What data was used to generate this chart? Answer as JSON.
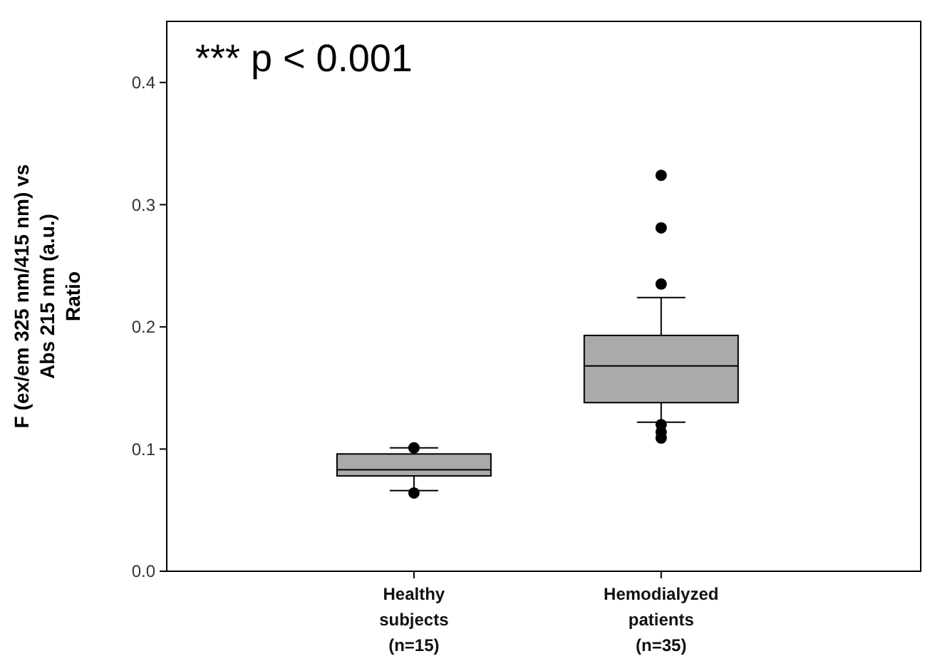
{
  "chart_data": {
    "type": "box",
    "ylabel": "F (ex/em 325 nm/415 nm) vs\nAbs 215 nm (a.u.)\nRatio",
    "annotations": [
      "*** p < 0.001"
    ],
    "categories": [
      "Healthy\nsubjects\n(n=15)",
      "Hemodialyzed\npatients\n(n=35)"
    ],
    "color": "#aaaaaa",
    "boxes": [
      {
        "low": 0.066,
        "q1": 0.078,
        "median": 0.083,
        "q3": 0.096,
        "high": 0.101,
        "outliers": [
          0.101,
          0.064
        ]
      },
      {
        "low": 0.122,
        "q1": 0.138,
        "median": 0.168,
        "q3": 0.193,
        "high": 0.224,
        "outliers": [
          0.324,
          0.281,
          0.235,
          0.12,
          0.114,
          0.109
        ]
      }
    ],
    "ylim": [
      0,
      0.45
    ],
    "yticks": [
      {
        "value": 0,
        "label": "0.0"
      },
      0.1,
      0.2,
      0.3,
      0.4
    ],
    "grid": false
  }
}
